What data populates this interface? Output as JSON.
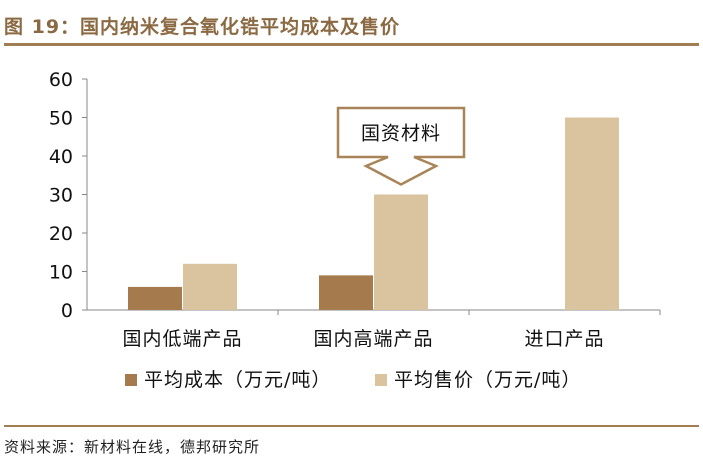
{
  "title": "图 19：国内纳米复合氧化锆平均成本及售价",
  "source": "资料来源：新材料在线，德邦研究所",
  "colors": {
    "brand": "#a07d52",
    "title": "#8b6a43",
    "cost": "#a57b4e",
    "price": "#d9c49f",
    "callout_border": "#a88458"
  },
  "chart_data": {
    "type": "bar",
    "categories": [
      "国内低端产品",
      "国内高端产品",
      "进口产品"
    ],
    "series": [
      {
        "name": "平均成本（万元/吨）",
        "values": [
          6,
          9,
          null
        ]
      },
      {
        "name": "平均售价（万元/吨）",
        "values": [
          12,
          30,
          50
        ]
      }
    ],
    "yticks": [
      "0",
      "10",
      "20",
      "30",
      "40",
      "50",
      "60"
    ],
    "ylim": [
      0,
      60
    ],
    "grid": false,
    "legend": "bottom",
    "annotation": {
      "text": "国资材料",
      "category": "国内高端产品",
      "series": "平均售价（万元/吨）"
    }
  }
}
